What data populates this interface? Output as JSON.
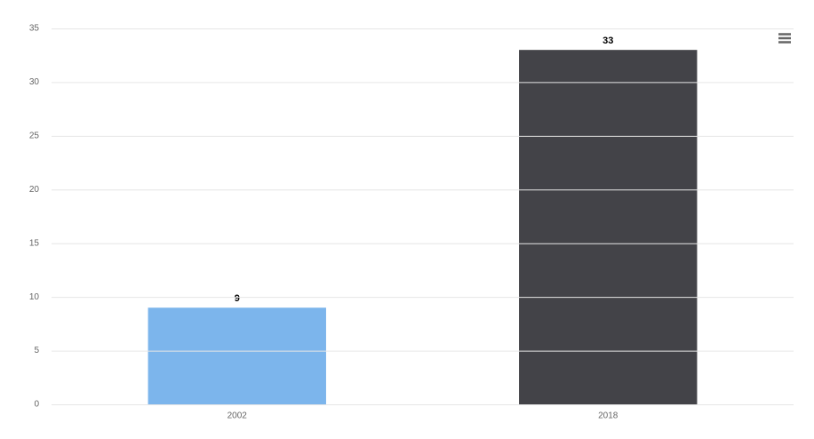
{
  "chart_data": {
    "type": "bar",
    "categories": [
      "2002",
      "2018"
    ],
    "values": [
      9,
      33
    ],
    "colors": [
      "#7cb5ec",
      "#434348"
    ],
    "ylim": [
      0,
      35
    ],
    "yticks": [
      0,
      5,
      10,
      15,
      20,
      25,
      30,
      35
    ],
    "grid": true,
    "data_labels": true
  }
}
